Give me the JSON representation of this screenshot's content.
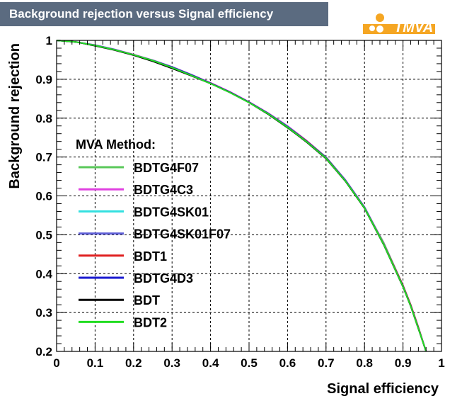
{
  "header": {
    "title": "Background rejection versus Signal efficiency",
    "logo_text": "TMVA"
  },
  "colors": {
    "title_bg": "#5b6b80",
    "grid": "#000000",
    "logo_orange": "#f5a623",
    "logo_red": "#e8251f"
  },
  "chart_data": {
    "type": "line",
    "xlabel": "Signal efficiency",
    "ylabel": "Background rejection",
    "xlim": [
      0,
      1
    ],
    "ylim": [
      0.2,
      1
    ],
    "x_ticks": [
      "0",
      "0.1",
      "0.2",
      "0.3",
      "0.4",
      "0.5",
      "0.6",
      "0.7",
      "0.8",
      "0.9",
      "1"
    ],
    "y_ticks": [
      "0.2",
      "0.3",
      "0.4",
      "0.5",
      "0.6",
      "0.7",
      "0.8",
      "0.9",
      "1"
    ],
    "grid": true,
    "legend": {
      "title": "MVA Method:",
      "position": "center-left"
    },
    "x": [
      0,
      0.05,
      0.1,
      0.15,
      0.2,
      0.25,
      0.3,
      0.35,
      0.4,
      0.45,
      0.5,
      0.55,
      0.6,
      0.65,
      0.7,
      0.75,
      0.8,
      0.85,
      0.9,
      0.92,
      0.94,
      0.96
    ],
    "series": [
      {
        "name": "BDTG4F07",
        "color": "#5ac85a",
        "values": [
          1.0,
          0.996,
          0.987,
          0.976,
          0.963,
          0.948,
          0.93,
          0.91,
          0.89,
          0.867,
          0.84,
          0.81,
          0.775,
          0.74,
          0.7,
          0.64,
          0.57,
          0.48,
          0.37,
          0.32,
          0.26,
          0.2
        ]
      },
      {
        "name": "BDTG4C3",
        "color": "#e040e0",
        "values": [
          1.0,
          0.996,
          0.988,
          0.977,
          0.964,
          0.949,
          0.932,
          0.912,
          0.891,
          0.868,
          0.842,
          0.813,
          0.78,
          0.742,
          0.7,
          0.642,
          0.572,
          0.478,
          0.37,
          0.32,
          0.262,
          0.2
        ]
      },
      {
        "name": "BDTG4SK01",
        "color": "#33e0e0",
        "values": [
          1.0,
          0.996,
          0.987,
          0.976,
          0.963,
          0.948,
          0.931,
          0.911,
          0.89,
          0.867,
          0.841,
          0.812,
          0.779,
          0.741,
          0.7,
          0.641,
          0.571,
          0.477,
          0.369,
          0.319,
          0.261,
          0.2
        ]
      },
      {
        "name": "BDTG4SK01F07",
        "color": "#6060d8",
        "values": [
          1.0,
          0.996,
          0.988,
          0.977,
          0.963,
          0.949,
          0.932,
          0.912,
          0.89,
          0.867,
          0.841,
          0.812,
          0.779,
          0.741,
          0.699,
          0.641,
          0.57,
          0.476,
          0.369,
          0.319,
          0.261,
          0.2
        ]
      },
      {
        "name": "BDT1",
        "color": "#e02020",
        "values": [
          1.0,
          0.996,
          0.987,
          0.976,
          0.963,
          0.948,
          0.931,
          0.911,
          0.89,
          0.867,
          0.841,
          0.812,
          0.778,
          0.741,
          0.699,
          0.64,
          0.57,
          0.476,
          0.37,
          0.32,
          0.262,
          0.2
        ]
      },
      {
        "name": "BDTG4D3",
        "color": "#1a1ad0",
        "values": [
          1.0,
          0.996,
          0.987,
          0.976,
          0.963,
          0.948,
          0.931,
          0.911,
          0.89,
          0.867,
          0.841,
          0.812,
          0.778,
          0.74,
          0.698,
          0.64,
          0.57,
          0.475,
          0.368,
          0.318,
          0.26,
          0.2
        ]
      },
      {
        "name": "BDT",
        "color": "#000000",
        "values": [
          1.0,
          0.996,
          0.986,
          0.975,
          0.962,
          0.946,
          0.928,
          0.909,
          0.889,
          0.866,
          0.84,
          0.81,
          0.776,
          0.738,
          0.696,
          0.638,
          0.568,
          0.474,
          0.366,
          0.316,
          0.258,
          0.2
        ]
      },
      {
        "name": "BDT2",
        "color": "#22dd22",
        "values": [
          1.0,
          0.996,
          0.987,
          0.976,
          0.963,
          0.948,
          0.93,
          0.91,
          0.889,
          0.866,
          0.84,
          0.811,
          0.777,
          0.739,
          0.697,
          0.639,
          0.569,
          0.475,
          0.367,
          0.317,
          0.259,
          0.2
        ]
      }
    ]
  }
}
